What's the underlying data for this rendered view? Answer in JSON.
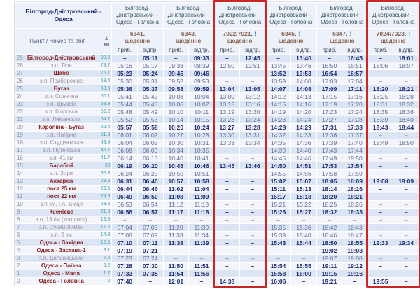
{
  "table": {
    "corner_title": "Білгород-Дністровський - Одеса",
    "corner_sub": "Пункт / Номер та обіг",
    "sum_symbol": "Σ",
    "sum_unit": "км",
    "arr_label": "приб.",
    "dep_label": "відпр.",
    "columns": [
      {
        "route": "Білгород-Дністровський – Одеса - Головна",
        "train": "6341,",
        "daily": "щоденно",
        "alert": false,
        "highlight": false
      },
      {
        "route": "Білгород-Дністровський – Одеса - Головна",
        "train": "6343,",
        "daily": "щоденно",
        "alert": false,
        "highlight": false
      },
      {
        "route": "Білгород-Дністровський – Одеса - Головна",
        "train": "7022/7021,",
        "daily": "щоденно",
        "alert": true,
        "highlight": true
      },
      {
        "route": "Білгород-Дністровський – Одеса - Головна",
        "train": "6345,",
        "daily": "щоденно",
        "alert": true,
        "highlight": false
      },
      {
        "route": "Білгород-Дністровський – Одеса - Головна",
        "train": "6347,",
        "daily": "щоденно",
        "alert": true,
        "highlight": false
      },
      {
        "route": "Білгород-Дністровський – Одеса - Головна",
        "train": "7024/7023,",
        "daily": "щоденно",
        "alert": true,
        "highlight": true
      }
    ],
    "rows": [
      {
        "num": "29",
        "name": "Білгород-Дністровський",
        "km": "80.2",
        "major": true,
        "times": [
          "–",
          "05:11",
          "–",
          "09:33",
          "–",
          "12:45",
          "–",
          "13:40",
          "–",
          "16:45",
          "–",
          "18:01"
        ]
      },
      {
        "num": "28",
        "name": "з.п. Тіра",
        "km": "78.7",
        "major": false,
        "times": [
          "05:16",
          "05:17",
          "09:38",
          "09:39",
          "12:50",
          "12:51",
          "13:45",
          "13:46",
          "16:50",
          "16:51",
          "18:06",
          "18:07"
        ]
      },
      {
        "num": "27",
        "name": "Шабо",
        "km": "75.1",
        "major": true,
        "times": [
          "05:23",
          "05:24",
          "09:45",
          "09:46",
          "–",
          "–",
          "13:52",
          "13:53",
          "16:54",
          "16:57",
          "–",
          "–"
        ]
      },
      {
        "num": "26",
        "name": "з.п. Прибережне",
        "km": "68.4",
        "major": false,
        "times": [
          "05:30",
          "05:31",
          "09:52",
          "09:53",
          "–",
          "–",
          "13:59",
          "14:00",
          "17:03",
          "17:04",
          "–",
          "–"
        ]
      },
      {
        "num": "25",
        "name": "Бугаз",
        "km": "63.5",
        "major": true,
        "times": [
          "05:36",
          "05:37",
          "09:58",
          "09:59",
          "13:04",
          "13:05",
          "14:07",
          "14:08",
          "17:09",
          "17:11",
          "18:20",
          "18:21"
        ]
      },
      {
        "num": "24",
        "name": "з.п. Сонячна",
        "km": "60.1",
        "major": false,
        "times": [
          "05:41",
          "05:42",
          "10:03",
          "10:04",
          "13:09",
          "13:12",
          "14:12",
          "14:13",
          "17:15",
          "17:16",
          "18:25",
          "18:28"
        ]
      },
      {
        "num": "23",
        "name": "з.п. Дружба",
        "km": "58.3",
        "major": false,
        "times": [
          "05:44",
          "05:45",
          "10:06",
          "10:07",
          "13:15",
          "13:16",
          "14:15",
          "14:16",
          "17:19",
          "17:20",
          "18:31",
          "18:32"
        ]
      },
      {
        "num": "22",
        "name": "з.п. Морська",
        "km": "56.2",
        "major": false,
        "times": [
          "05:48",
          "05:49",
          "10:10",
          "10:11",
          "13:19",
          "13:20",
          "14:19",
          "14:20",
          "17:23",
          "17:24",
          "18:35",
          "18:36"
        ]
      },
      {
        "num": "21",
        "name": "з.п. Лиманська",
        "km": "54.7",
        "major": false,
        "times": [
          "05:52",
          "05:53",
          "10:14",
          "10:15",
          "13:23",
          "13:24",
          "14:23",
          "14:24",
          "17:27",
          "17:28",
          "18:39",
          "18:40"
        ]
      },
      {
        "num": "20",
        "name": "Кароліна - Бугаз",
        "km": "52.4",
        "major": true,
        "times": [
          "05:57",
          "05:58",
          "10:20",
          "10:24",
          "13:27",
          "13:28",
          "14:28",
          "14:29",
          "17:31",
          "17:33",
          "18:43",
          "18:44"
        ]
      },
      {
        "num": "19",
        "name": "з.п. Нагірна",
        "km": "51.3",
        "major": false,
        "times": [
          "06:01",
          "06:02",
          "10:27",
          "10:28",
          "13:30",
          "13:31",
          "14:32",
          "14:33",
          "17:36",
          "17:37",
          "–",
          "–"
        ]
      },
      {
        "num": "18",
        "name": "з.п. Студентська",
        "km": "49.4",
        "major": false,
        "times": [
          "06:04",
          "06:05",
          "10:30",
          "10:31",
          "13:33",
          "13:34",
          "14:35",
          "14:36",
          "17:39",
          "17:40",
          "18:49",
          "18:50"
        ]
      },
      {
        "num": "17",
        "name": "з.п. Путейська",
        "km": "45.7",
        "major": false,
        "times": [
          "06:08",
          "06:09",
          "10:34",
          "10:35",
          "–",
          "–",
          "14:39",
          "14:40",
          "17:43",
          "17:44",
          "–",
          "–"
        ]
      },
      {
        "num": "16",
        "name": "з.п. 41 км",
        "km": "41.7",
        "major": false,
        "times": [
          "06:14",
          "06:15",
          "10:40",
          "10:41",
          "–",
          "–",
          "14:45",
          "14:46",
          "17:49",
          "19:50",
          "–",
          "–"
        ]
      },
      {
        "num": "15",
        "name": "Барабой",
        "km": "39",
        "major": true,
        "times": [
          "06:19",
          "06:20",
          "10:45",
          "10:46",
          "13:45",
          "13:46",
          "14:50",
          "14:51",
          "17:53",
          "17:54",
          "–",
          "–"
        ]
      },
      {
        "num": "14",
        "name": "з.п. Зоря",
        "km": "35.8",
        "major": false,
        "times": [
          "06:24",
          "06:25",
          "10:50",
          "10:51",
          "–",
          "–",
          "14:55",
          "14:56",
          "17:58",
          "17:59",
          "–",
          "–"
        ]
      },
      {
        "num": "13",
        "name": "Аккаржа",
        "km": "29.5",
        "major": true,
        "times": [
          "06:31",
          "06:40",
          "10:57",
          "10:58",
          "–",
          "–",
          "15:02",
          "15:07",
          "18:05",
          "18:09",
          "19:08",
          "19:09"
        ]
      },
      {
        "num": "12",
        "name": "пост 25 км",
        "km": "26.6",
        "major": true,
        "times": [
          "06:44",
          "06:46",
          "11:02",
          "11:04",
          "–",
          "–",
          "15:11",
          "15:13",
          "18:14",
          "18:16",
          "–",
          "–"
        ]
      },
      {
        "num": "11",
        "name": "пост 22 км",
        "km": "24.9",
        "major": true,
        "times": [
          "06:49",
          "06:50",
          "11:08",
          "11:09",
          "–",
          "–",
          "15:17",
          "15:18",
          "18:20",
          "18:21",
          "–",
          "–"
        ]
      },
      {
        "num": "10",
        "name": "з.п. ім. І.А. Ємця",
        "km": "23.6",
        "major": false,
        "times": [
          "06:53",
          "06:54",
          "11:12",
          "11:13",
          "–",
          "–",
          "15:21",
          "15:22",
          "18:25",
          "18:26",
          "–",
          "–"
        ]
      },
      {
        "num": "9",
        "name": "Ксенієве",
        "km": "21.3",
        "major": true,
        "times": [
          "06:56",
          "06:57",
          "11:17",
          "11:18",
          "–",
          "–",
          "15:26",
          "15:27",
          "18:32",
          "18:33",
          "–",
          "–"
        ]
      },
      {
        "num": "8",
        "name": "з.п. 13 км (кол пост)",
        "km": "18.8",
        "major": false,
        "times": [
          "–",
          "–",
          "–",
          "–",
          "–",
          "–",
          "–",
          "–",
          "–",
          "–",
          "–",
          "–"
        ]
      },
      {
        "num": "7",
        "name": "з.п. Сухий Лиман",
        "km": "17.2",
        "major": false,
        "times": [
          "07:04",
          "07:05",
          "11:29",
          "11:30",
          "–",
          "–",
          "15:35",
          "15:36",
          "18:42",
          "18:43",
          "–",
          "–"
        ]
      },
      {
        "num": "6",
        "name": "з.п. 9 км",
        "km": "14.8",
        "major": false,
        "times": [
          "07:08",
          "07:09",
          "11:33",
          "11:34",
          "–",
          "–",
          "15:39",
          "15:40",
          "18:46",
          "18:47",
          "–",
          "–"
        ]
      },
      {
        "num": "5",
        "name": "Одеса - Західна",
        "km": "12.5",
        "major": true,
        "times": [
          "07:10",
          "07:11",
          "11:38",
          "11:39",
          "–",
          "–",
          "15:43",
          "15:44",
          "18:50",
          "18:55",
          "19:33",
          "19:34"
        ]
      },
      {
        "num": "4",
        "name": "Одеса - Застава-1",
        "km": "8.1",
        "major": true,
        "times": [
          "07:19",
          "07:21",
          "–",
          "–",
          "–",
          "–",
          "–",
          "–",
          "19:02",
          "19:03",
          "–",
          "–"
        ]
      },
      {
        "num": "3",
        "name": "з.п. Дальницький",
        "km": "7.2",
        "major": false,
        "times": [
          "07:23",
          "07:24",
          "–",
          "–",
          "–",
          "–",
          "–",
          "–",
          "19:07",
          "19:08",
          "–",
          "–"
        ]
      },
      {
        "num": "2",
        "name": "Одеса - Поїзна",
        "km": "3.2",
        "major": true,
        "times": [
          "07:28",
          "07:30",
          "11:50",
          "11:51",
          "–",
          "–",
          "15:54",
          "15:55",
          "19:11",
          "19:12",
          "–",
          "–"
        ]
      },
      {
        "num": "1",
        "name": "Одеса - Мала",
        "km": "1.7",
        "major": true,
        "times": [
          "07:33",
          "07:35",
          "11:54",
          "11:56",
          "–",
          "–",
          "15:58",
          "16:00",
          "19:15",
          "19:16",
          "–",
          "–"
        ]
      },
      {
        "num": "0",
        "name": "Одеса - Головна",
        "km": "0",
        "major": true,
        "times": [
          "07:40",
          "–",
          "12:01",
          "–",
          "14:38",
          "–",
          "16:06",
          "–",
          "19:21",
          "–",
          "19:55",
          "–"
        ]
      }
    ]
  },
  "colors": {
    "highlight_border": "#cb2626",
    "alert_icon": "#1d84d8",
    "major_station_text": "#8b2121",
    "stop_text": "#9b8da0",
    "bold_time_text": "#1d2d72",
    "time_text": "#5e7096",
    "km_text": "#3fa3ae",
    "row_blue": "#dbe5f4",
    "row_light": "#f4f5fb",
    "header_bg": "#edf1f9"
  }
}
